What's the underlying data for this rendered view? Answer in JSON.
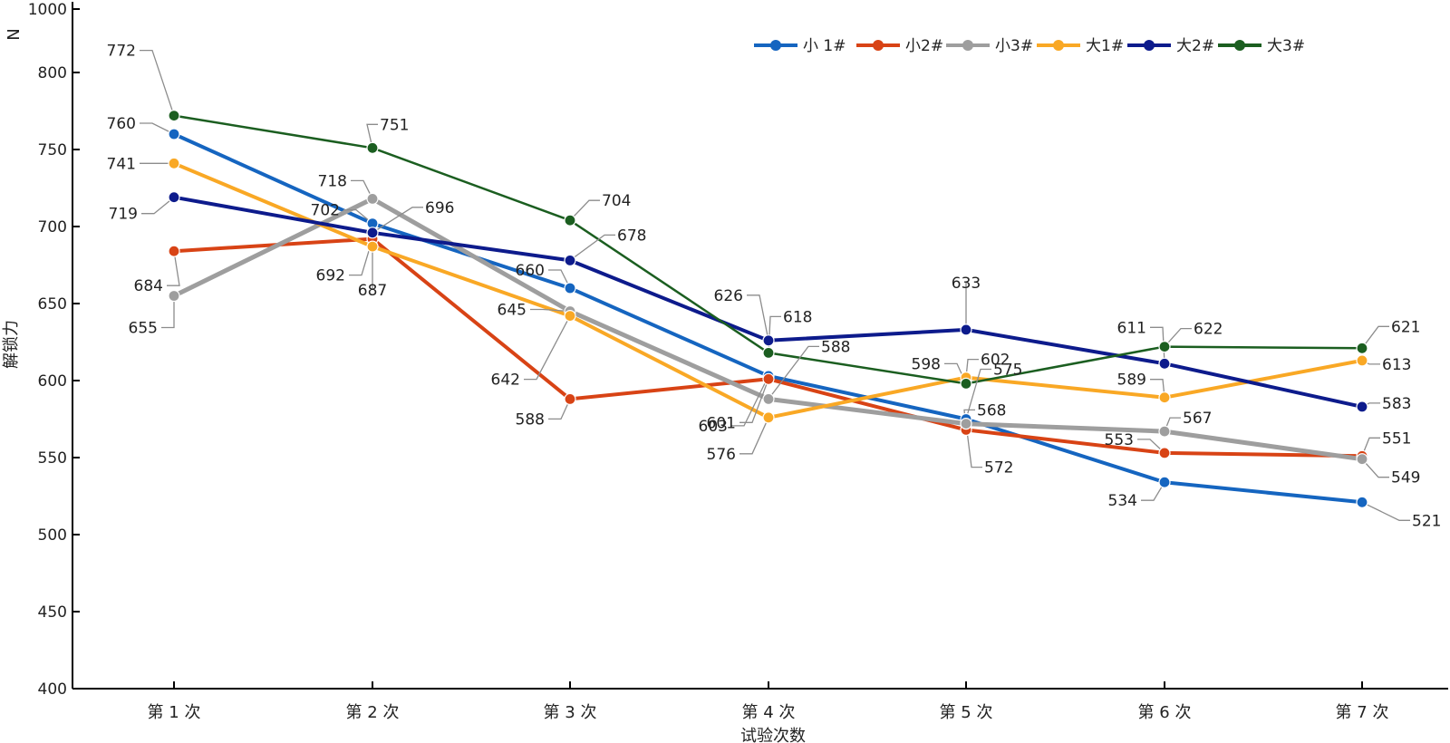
{
  "chart_data": {
    "type": "line",
    "title": "",
    "xlabel": "试验次数",
    "ylabel": "解锁力",
    "yunit": "N",
    "categories": [
      "第 1 次",
      "第 2 次",
      "第 3 次",
      "第 4 次",
      "第 5 次",
      "第 6 次",
      "第 7 次"
    ],
    "yticks": [
      400,
      450,
      500,
      550,
      600,
      650,
      700,
      750,
      800,
      1000
    ],
    "legend_position": "top-right",
    "series": [
      {
        "name": "小 1#",
        "color": "#1565c0",
        "values": [
          760,
          702,
          660,
          603,
          575,
          534,
          521
        ]
      },
      {
        "name": "小2#",
        "color": "#d84315",
        "values": [
          684,
          692,
          588,
          601,
          568,
          553,
          551
        ]
      },
      {
        "name": "小3#",
        "color": "#9e9e9e",
        "values": [
          655,
          718,
          645,
          588,
          572,
          567,
          549
        ]
      },
      {
        "name": "大1#",
        "color": "#f9a825",
        "values": [
          741,
          687,
          642,
          576,
          602,
          589,
          613
        ]
      },
      {
        "name": "大2#",
        "color": "#0d1b8c",
        "values": [
          719,
          696,
          678,
          626,
          633,
          611,
          583
        ]
      },
      {
        "name": "大3#",
        "color": "#1b5e20",
        "values": [
          772,
          751,
          704,
          618,
          598,
          622,
          621
        ]
      }
    ]
  }
}
